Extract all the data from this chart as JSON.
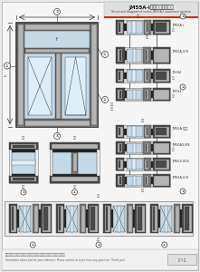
{
  "title_cn": "JM55A-I系列平开窗结构图",
  "title_en": "Structural diagram of series JM55A-I casement window",
  "footer_cn": "图中所示型材图面、规格、编号、尺寸及重量仅供参考，如有疑问，请向本公司查询。",
  "footer_en": "Information above just for your reference. Please contact us if you have any questions. Thank you!",
  "bg_color": "#e8e8e8",
  "paper_color": "#f5f5f5",
  "line_color": "#333333",
  "title_bar_color": "#d5d5d5",
  "accent_color": "#cc3300",
  "dark_metal": "#4a4a4a",
  "mid_metal": "#7a7a7a",
  "light_metal": "#b5b5b5",
  "very_light": "#d8d8d8",
  "glass_color": "#c5d8e5",
  "glass_light": "#ddeef8",
  "hatch_color": "#555555",
  "white": "#ffffff"
}
